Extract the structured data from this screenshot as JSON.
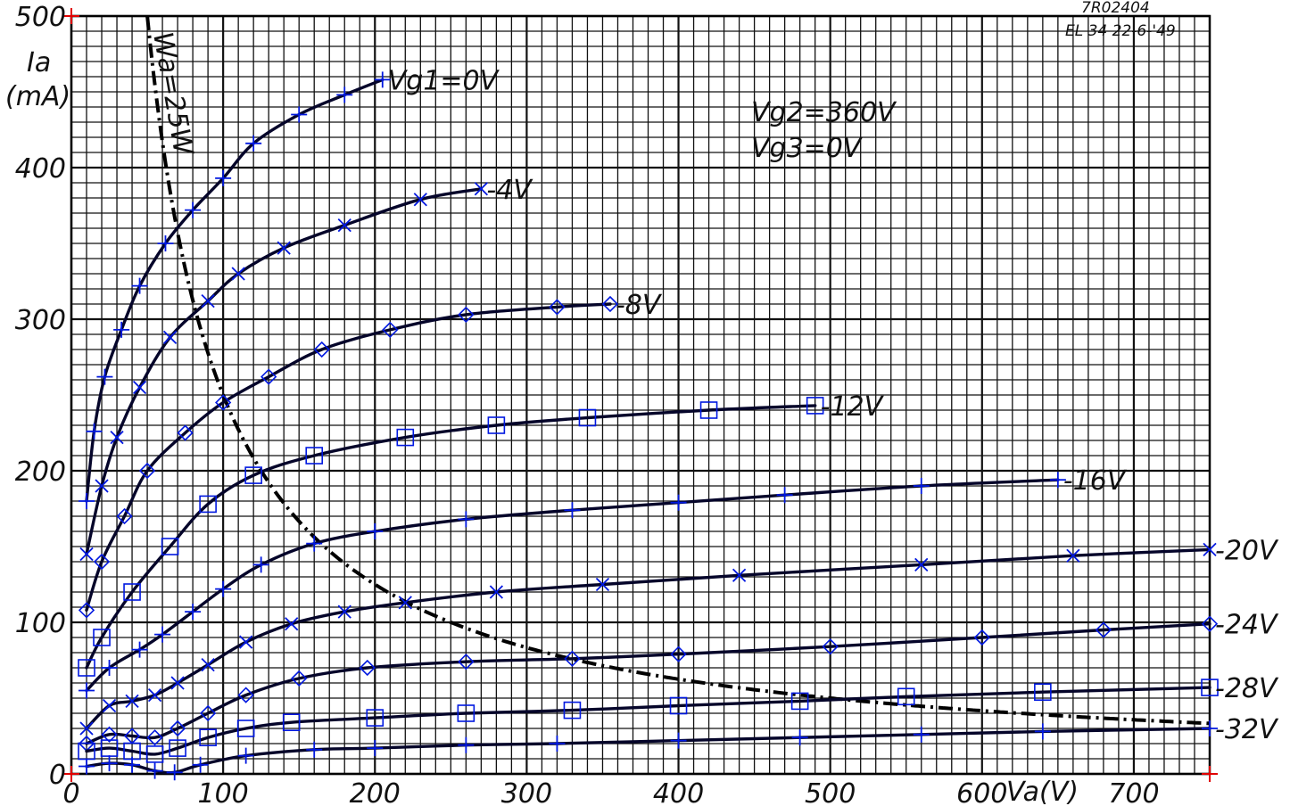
{
  "header": {
    "line1": "7R02404",
    "line2": "EL 34 22-6-'49"
  },
  "chart_data": {
    "type": "line",
    "title": "",
    "xlabel": "Va(V)",
    "ylabel_line1": "Ia",
    "ylabel_line2": "(mA)",
    "xlim": [
      0,
      750
    ],
    "ylim": [
      0,
      500
    ],
    "x_ticks": [
      0,
      100,
      200,
      300,
      400,
      500,
      600,
      700
    ],
    "x_tick_labels": [
      "0",
      "100",
      "200",
      "300",
      "400",
      "500",
      "600",
      "700"
    ],
    "y_ticks": [
      0,
      100,
      200,
      300,
      400,
      500
    ],
    "y_tick_labels": [
      "0",
      "100",
      "200",
      "300",
      "400",
      "500"
    ],
    "grid": true,
    "grid_minor_step_x": 10,
    "grid_minor_step_y": 10,
    "conditions": [
      "Vg2=360V",
      "Vg3=0V"
    ],
    "dissipation_label": "Wa=25W",
    "dissipation_watts": 25,
    "series": [
      {
        "name": "Vg1=0V",
        "label": "Vg1=0V",
        "marker": "plus",
        "points": [
          [
            10,
            180
          ],
          [
            15,
            226
          ],
          [
            22,
            262
          ],
          [
            33,
            293
          ],
          [
            45,
            322
          ],
          [
            62,
            350
          ],
          [
            80,
            372
          ],
          [
            100,
            393
          ],
          [
            120,
            416
          ],
          [
            150,
            435
          ],
          [
            180,
            448
          ],
          [
            205,
            458
          ]
        ]
      },
      {
        "name": "-4V",
        "label": "-4V",
        "marker": "x",
        "points": [
          [
            10,
            145
          ],
          [
            20,
            190
          ],
          [
            30,
            222
          ],
          [
            45,
            255
          ],
          [
            65,
            288
          ],
          [
            90,
            312
          ],
          [
            110,
            330
          ],
          [
            140,
            347
          ],
          [
            180,
            362
          ],
          [
            230,
            379
          ],
          [
            270,
            386
          ]
        ]
      },
      {
        "name": "-8V",
        "label": "-8V",
        "marker": "diamond",
        "points": [
          [
            10,
            108
          ],
          [
            20,
            140
          ],
          [
            35,
            170
          ],
          [
            50,
            200
          ],
          [
            75,
            225
          ],
          [
            100,
            245
          ],
          [
            130,
            262
          ],
          [
            165,
            280
          ],
          [
            210,
            293
          ],
          [
            260,
            303
          ],
          [
            320,
            308
          ],
          [
            355,
            310
          ]
        ]
      },
      {
        "name": "-12V",
        "label": "-12V",
        "marker": "square",
        "points": [
          [
            10,
            70
          ],
          [
            20,
            90
          ],
          [
            40,
            120
          ],
          [
            65,
            150
          ],
          [
            90,
            178
          ],
          [
            120,
            197
          ],
          [
            160,
            210
          ],
          [
            220,
            222
          ],
          [
            280,
            230
          ],
          [
            340,
            235
          ],
          [
            420,
            240
          ],
          [
            490,
            243
          ]
        ]
      },
      {
        "name": "-16V",
        "label": "-16V",
        "marker": "plus",
        "points": [
          [
            10,
            55
          ],
          [
            25,
            70
          ],
          [
            45,
            82
          ],
          [
            60,
            92
          ],
          [
            80,
            107
          ],
          [
            100,
            122
          ],
          [
            125,
            138
          ],
          [
            160,
            152
          ],
          [
            200,
            160
          ],
          [
            260,
            168
          ],
          [
            330,
            174
          ],
          [
            400,
            179
          ],
          [
            470,
            184
          ],
          [
            560,
            190
          ],
          [
            650,
            194
          ]
        ]
      },
      {
        "name": "-20V",
        "label": "-20V",
        "marker": "x",
        "points": [
          [
            10,
            30
          ],
          [
            25,
            45
          ],
          [
            40,
            48
          ],
          [
            55,
            52
          ],
          [
            70,
            60
          ],
          [
            90,
            72
          ],
          [
            115,
            87
          ],
          [
            145,
            99
          ],
          [
            180,
            107
          ],
          [
            220,
            113
          ],
          [
            280,
            120
          ],
          [
            350,
            125
          ],
          [
            440,
            131
          ],
          [
            560,
            138
          ],
          [
            660,
            144
          ],
          [
            750,
            148
          ]
        ]
      },
      {
        "name": "-24V",
        "label": "-24V",
        "marker": "diamond",
        "points": [
          [
            10,
            20
          ],
          [
            25,
            26
          ],
          [
            40,
            25
          ],
          [
            55,
            24
          ],
          [
            70,
            30
          ],
          [
            90,
            40
          ],
          [
            115,
            52
          ],
          [
            150,
            63
          ],
          [
            195,
            70
          ],
          [
            260,
            74
          ],
          [
            330,
            76
          ],
          [
            400,
            79
          ],
          [
            500,
            84
          ],
          [
            600,
            90
          ],
          [
            680,
            95
          ],
          [
            750,
            99
          ]
        ]
      },
      {
        "name": "-28V",
        "label": "-28V",
        "marker": "square",
        "points": [
          [
            10,
            15
          ],
          [
            25,
            17
          ],
          [
            40,
            15
          ],
          [
            55,
            13
          ],
          [
            70,
            17
          ],
          [
            90,
            24
          ],
          [
            115,
            30
          ],
          [
            145,
            34
          ],
          [
            200,
            37
          ],
          [
            260,
            40
          ],
          [
            330,
            42
          ],
          [
            400,
            45
          ],
          [
            480,
            48
          ],
          [
            550,
            51
          ],
          [
            640,
            54
          ],
          [
            750,
            57
          ]
        ]
      },
      {
        "name": "-32V",
        "label": "-32V",
        "marker": "plus",
        "points": [
          [
            10,
            5
          ],
          [
            25,
            7
          ],
          [
            40,
            6
          ],
          [
            55,
            2
          ],
          [
            68,
            1
          ],
          [
            85,
            6
          ],
          [
            115,
            12
          ],
          [
            160,
            16
          ],
          [
            200,
            17
          ],
          [
            260,
            19
          ],
          [
            320,
            20
          ],
          [
            400,
            22
          ],
          [
            480,
            24
          ],
          [
            560,
            26
          ],
          [
            640,
            28
          ],
          [
            750,
            30
          ]
        ]
      }
    ]
  }
}
